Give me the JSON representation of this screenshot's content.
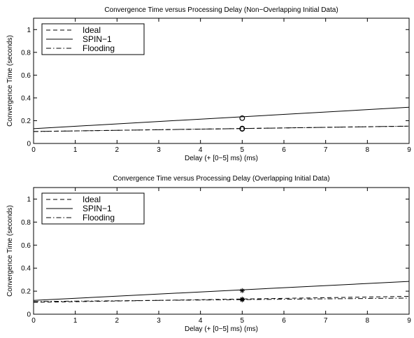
{
  "chart_data": [
    {
      "type": "line",
      "title": "Convergence Time versus Processing Delay (Non−Overlapping Initial Data)",
      "xlabel": "Delay (+ [0−5] ms) (ms)",
      "ylabel": "Convergence Time (seconds)",
      "xlim": [
        0,
        9
      ],
      "ylim": [
        0,
        1.1
      ],
      "xticks": [
        "0",
        "1",
        "2",
        "3",
        "4",
        "5",
        "6",
        "7",
        "8",
        "9"
      ],
      "yticks": [
        "0",
        "0.2",
        "0.4",
        "0.6",
        "0.8",
        "1"
      ],
      "grid": false,
      "legend_position": "top-left",
      "series": [
        {
          "name": "Ideal",
          "style": "dashed",
          "x": [
            0,
            9
          ],
          "y": [
            0.105,
            0.152
          ]
        },
        {
          "name": "SPIN−1",
          "style": "solid",
          "x": [
            0,
            9
          ],
          "y": [
            0.13,
            0.318
          ]
        },
        {
          "name": "Flooding",
          "style": "dashdot",
          "x": [
            0,
            9
          ],
          "y": [
            0.105,
            0.152
          ]
        }
      ],
      "markers": [
        {
          "x": 5,
          "y": 0.222,
          "symbol": "circle"
        },
        {
          "x": 5,
          "y": 0.131,
          "symbol": "circle"
        },
        {
          "x": 5,
          "y": 0.128,
          "symbol": "circle"
        }
      ]
    },
    {
      "type": "line",
      "title": "Convergence Time versus Processing Delay (Overlapping Initial Data)",
      "xlabel": "Delay (+ [0−5] ms) (ms)",
      "ylabel": "Convergence Time (seconds)",
      "xlim": [
        0,
        9
      ],
      "ylim": [
        0,
        1.1
      ],
      "xticks": [
        "0",
        "1",
        "2",
        "3",
        "4",
        "5",
        "6",
        "7",
        "8",
        "9"
      ],
      "yticks": [
        "0",
        "0.2",
        "0.4",
        "0.6",
        "0.8",
        "1"
      ],
      "grid": false,
      "legend_position": "top-left",
      "series": [
        {
          "name": "Ideal",
          "style": "dashed",
          "x": [
            0,
            9
          ],
          "y": [
            0.103,
            0.155
          ]
        },
        {
          "name": "SPIN−1",
          "style": "solid",
          "x": [
            0,
            9
          ],
          "y": [
            0.12,
            0.285
          ]
        },
        {
          "name": "Flooding",
          "style": "dashdot",
          "x": [
            0,
            9
          ],
          "y": [
            0.11,
            0.14
          ]
        }
      ],
      "markers": [
        {
          "x": 5,
          "y": 0.205,
          "symbol": "star"
        },
        {
          "x": 5,
          "y": 0.131,
          "symbol": "star"
        },
        {
          "x": 5,
          "y": 0.124,
          "symbol": "star"
        }
      ]
    }
  ]
}
